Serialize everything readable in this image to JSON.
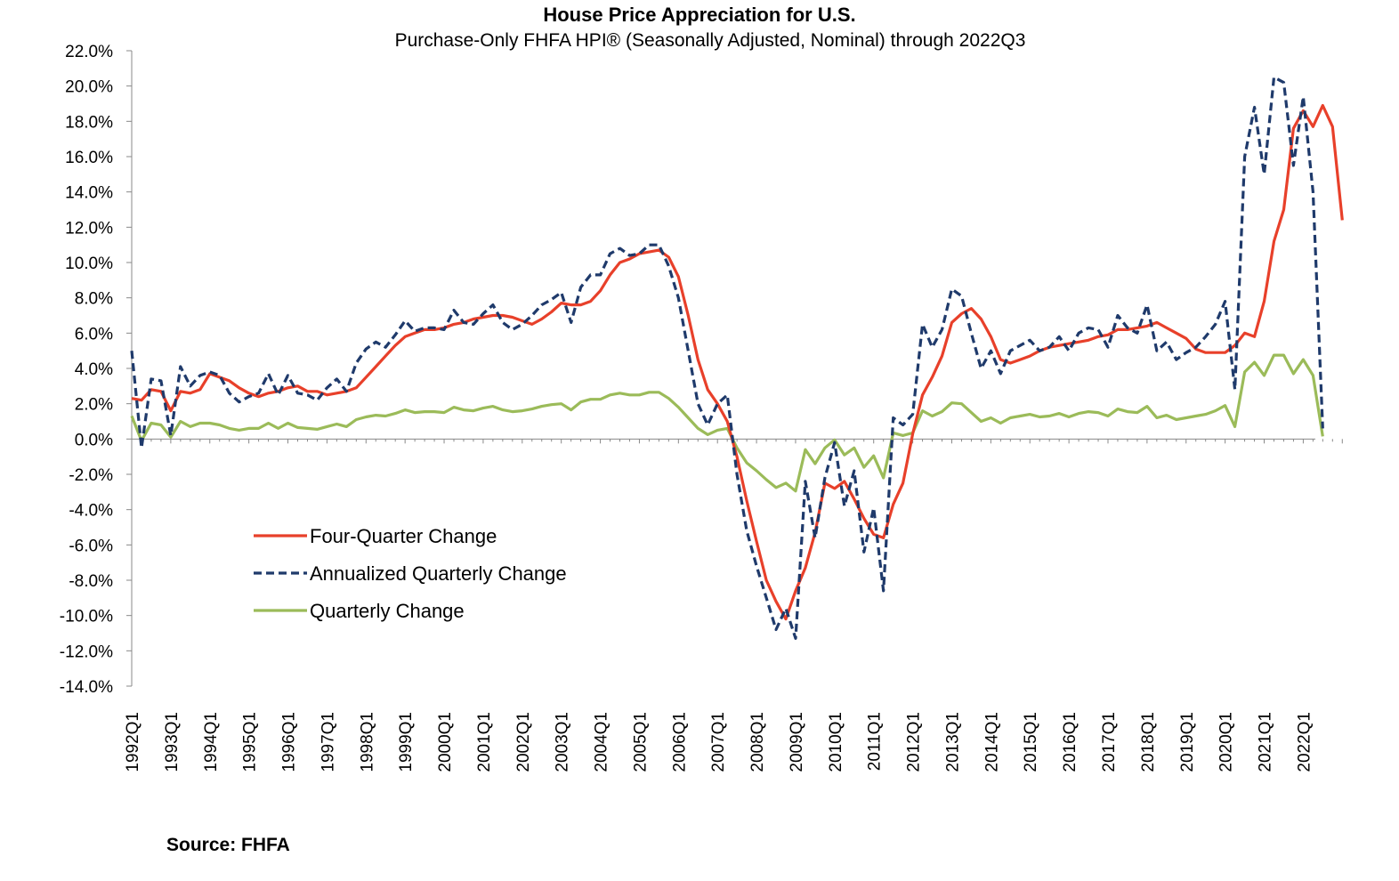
{
  "chart_data": {
    "type": "line",
    "title": "House Price Appreciation for U.S.",
    "subtitle": "Purchase-Only FHFA HPI® (Seasonally Adjusted, Nominal) through 2022Q3",
    "xlabel": "",
    "ylabel": "",
    "ylim": [
      -14,
      22
    ],
    "y_ticks": [
      "22.0%",
      "20.0%",
      "18.0%",
      "16.0%",
      "14.0%",
      "12.0%",
      "10.0%",
      "8.0%",
      "6.0%",
      "4.0%",
      "2.0%",
      "0.0%",
      "-2.0%",
      "-4.0%",
      "-6.0%",
      "-8.0%",
      "-10.0%",
      "-12.0%",
      "-14.0%"
    ],
    "x_ticks": [
      "1992Q1",
      "1993Q1",
      "1994Q1",
      "1995Q1",
      "1996Q1",
      "1997Q1",
      "1998Q1",
      "1999Q1",
      "2000Q1",
      "2001Q1",
      "2002Q1",
      "2003Q1",
      "2004Q1",
      "2005Q1",
      "2006Q1",
      "2007Q1",
      "2008Q1",
      "2009Q1",
      "2010Q1",
      "2011Q1",
      "2012Q1",
      "2013Q1",
      "2014Q1",
      "2015Q1",
      "2016Q1",
      "2017Q1",
      "2018Q1",
      "2019Q1",
      "2020Q1",
      "2021Q1",
      "2022Q1"
    ],
    "grid": false,
    "legend_position": "lower-left",
    "series": [
      {
        "name": "Four-Quarter Change",
        "color": "#e8402a",
        "style": "solid",
        "values": [
          2.3,
          2.2,
          2.8,
          2.7,
          1.6,
          2.7,
          2.6,
          2.8,
          3.7,
          3.5,
          3.3,
          2.9,
          2.6,
          2.4,
          2.6,
          2.7,
          2.9,
          3.0,
          2.7,
          2.7,
          2.5,
          2.6,
          2.7,
          2.9,
          3.5,
          4.1,
          4.7,
          5.3,
          5.8,
          6.0,
          6.2,
          6.2,
          6.3,
          6.5,
          6.6,
          6.8,
          6.9,
          7.0,
          7.0,
          6.9,
          6.7,
          6.5,
          6.8,
          7.2,
          7.7,
          7.6,
          7.6,
          7.8,
          8.4,
          9.3,
          10.0,
          10.2,
          10.5,
          10.6,
          10.7,
          10.3,
          9.2,
          7.0,
          4.5,
          2.8,
          2.0,
          1.0,
          -1.0,
          -3.5,
          -5.8,
          -8.0,
          -9.2,
          -10.2,
          -8.6,
          -7.3,
          -5.3,
          -2.5,
          -2.8,
          -2.4,
          -3.4,
          -4.5,
          -5.4,
          -5.6,
          -3.7,
          -2.5,
          0.3,
          2.5,
          3.5,
          4.7,
          6.6,
          7.1,
          7.4,
          6.8,
          5.8,
          4.5,
          4.3,
          4.5,
          4.7,
          5.0,
          5.2,
          5.3,
          5.4,
          5.5,
          5.6,
          5.8,
          5.9,
          6.2,
          6.2,
          6.3,
          6.4,
          6.6,
          6.3,
          6.0,
          5.7,
          5.1,
          4.9,
          4.9,
          4.9,
          5.3,
          6.0,
          5.8,
          7.8,
          11.2,
          13.0,
          17.6,
          18.6,
          17.7,
          18.9,
          17.7,
          12.4
        ]
      },
      {
        "name": "Annualized Quarterly Change",
        "color": "#1f3a6b",
        "style": "dashed",
        "values": [
          5.0,
          -0.5,
          3.4,
          3.3,
          0.2,
          4.1,
          3.0,
          3.6,
          3.8,
          3.6,
          2.6,
          2.1,
          2.4,
          2.6,
          3.7,
          2.5,
          3.6,
          2.6,
          2.5,
          2.2,
          2.9,
          3.4,
          2.7,
          4.3,
          5.1,
          5.5,
          5.2,
          5.9,
          6.7,
          6.1,
          6.3,
          6.3,
          6.2,
          7.3,
          6.6,
          6.5,
          7.1,
          7.6,
          6.6,
          6.2,
          6.5,
          7.0,
          7.6,
          7.9,
          8.3,
          6.6,
          8.6,
          9.3,
          9.3,
          10.5,
          10.8,
          10.4,
          10.5,
          11.0,
          11.0,
          9.8,
          8.0,
          5.0,
          2.0,
          0.8,
          2.0,
          2.5,
          -2.0,
          -5.2,
          -7.2,
          -9.0,
          -10.8,
          -9.6,
          -11.3,
          -2.4,
          -5.6,
          -2.2,
          -0.2,
          -3.8,
          -1.8,
          -6.4,
          -3.9,
          -8.6,
          1.2,
          0.8,
          1.4,
          6.5,
          5.2,
          6.2,
          8.5,
          8.1,
          6.0,
          4.0,
          5.0,
          3.7,
          5.0,
          5.3,
          5.6,
          5.0,
          5.2,
          5.8,
          5.0,
          6.0,
          6.3,
          6.2,
          5.2,
          7.0,
          6.3,
          6.0,
          7.6,
          5.0,
          5.5,
          4.5,
          4.9,
          5.2,
          5.8,
          6.5,
          7.8,
          2.8,
          16.0,
          18.8,
          15.0,
          20.5,
          20.2,
          15.5,
          19.4,
          14.0,
          0.6
        ]
      },
      {
        "name": "Quarterly Change",
        "color": "#9bbb59",
        "style": "solid",
        "values": [
          1.3,
          -0.1,
          0.9,
          0.8,
          0.1,
          1.0,
          0.7,
          0.9,
          0.9,
          0.8,
          0.6,
          0.5,
          0.6,
          0.6,
          0.9,
          0.6,
          0.9,
          0.65,
          0.6,
          0.55,
          0.7,
          0.85,
          0.7,
          1.1,
          1.25,
          1.35,
          1.3,
          1.45,
          1.65,
          1.5,
          1.55,
          1.55,
          1.5,
          1.8,
          1.65,
          1.6,
          1.75,
          1.85,
          1.65,
          1.55,
          1.6,
          1.7,
          1.85,
          1.95,
          2.0,
          1.65,
          2.1,
          2.25,
          2.25,
          2.5,
          2.6,
          2.5,
          2.5,
          2.65,
          2.65,
          2.3,
          1.8,
          1.2,
          0.6,
          0.25,
          0.5,
          0.6,
          -0.5,
          -1.35,
          -1.8,
          -2.3,
          -2.75,
          -2.5,
          -2.95,
          -0.6,
          -1.4,
          -0.5,
          -0.05,
          -0.9,
          -0.5,
          -1.6,
          -0.95,
          -2.2,
          0.35,
          0.2,
          0.35,
          1.6,
          1.3,
          1.55,
          2.05,
          2.0,
          1.5,
          1.0,
          1.2,
          0.9,
          1.2,
          1.3,
          1.4,
          1.25,
          1.3,
          1.45,
          1.25,
          1.45,
          1.55,
          1.5,
          1.3,
          1.7,
          1.55,
          1.5,
          1.85,
          1.2,
          1.35,
          1.1,
          1.2,
          1.3,
          1.4,
          1.6,
          1.9,
          0.7,
          3.8,
          4.35,
          3.6,
          4.75,
          4.75,
          3.7,
          4.5,
          3.6,
          0.15
        ]
      }
    ]
  },
  "source_note": "Source:  FHFA"
}
